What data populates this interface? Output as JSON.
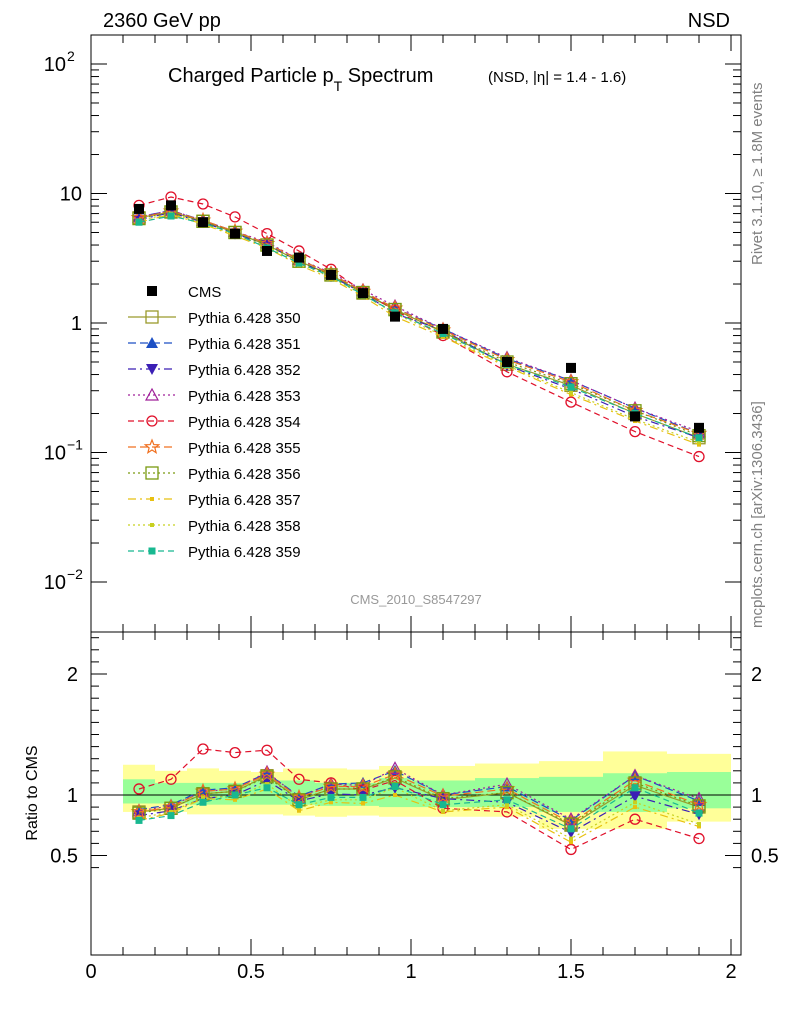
{
  "header": {
    "left": "2360 GeV pp",
    "right": "NSD"
  },
  "side_text": {
    "top": "Rivet 3.1.10, ≥ 1.8M events",
    "bottom": "mcplots.cern.ch [arXiv:1306.3436]"
  },
  "chart_data": [
    {
      "type": "line",
      "panel": "main",
      "title": "Charged Particle p",
      "title_sub": "T",
      "title_rest": " Spectrum",
      "title_note": "(NSD, |η| = 1.4 - 1.6)",
      "analysis_id": "CMS_2010_S8547297",
      "yscale": "log",
      "xlim": [
        0,
        2
      ],
      "ylim": [
        0.004,
        160
      ],
      "ytick_labels": [
        "10",
        "1",
        "10"
      ],
      "ytick_exp": [
        "2",
        "",
        "",
        "−1",
        "−2"
      ],
      "ytick_values": [
        100,
        10,
        1,
        0.1,
        0.01
      ],
      "x": [
        0.15,
        0.25,
        0.35,
        0.45,
        0.55,
        0.65,
        0.75,
        0.85,
        0.95,
        1.1,
        1.3,
        1.5,
        1.7,
        1.9
      ],
      "data": {
        "name": "CMS",
        "color": "#000000",
        "values": [
          7.6,
          8.1,
          6.0,
          4.9,
          3.6,
          3.2,
          2.35,
          1.7,
          1.12,
          0.9,
          0.5,
          0.45,
          0.19,
          0.155
        ]
      },
      "series": [
        {
          "name": "Pythia 6.428 350",
          "color": "#9a9a2c",
          "marker": "open-square",
          "dash": "solid",
          "values": [
            6.5,
            7.2,
            6.1,
            5.0,
            4.0,
            3.0,
            2.35,
            1.7,
            1.27,
            0.85,
            0.48,
            0.33,
            0.2,
            0.13
          ]
        },
        {
          "name": "Pythia 6.428 351",
          "color": "#1c4fc4",
          "marker": "filled-triangle-up",
          "dash": "8,4",
          "values": [
            6.6,
            7.4,
            6.2,
            5.1,
            4.1,
            3.1,
            2.4,
            1.75,
            1.3,
            0.9,
            0.53,
            0.36,
            0.22,
            0.14
          ]
        },
        {
          "name": "Pythia 6.428 352",
          "color": "#3b1fb5",
          "marker": "filled-triangle-down",
          "dash": "8,4,2,4",
          "values": [
            6.3,
            7.1,
            6.0,
            4.9,
            4.0,
            3.0,
            2.3,
            1.7,
            1.18,
            0.88,
            0.47,
            0.31,
            0.19,
            0.13
          ]
        },
        {
          "name": "Pythia 6.428 353",
          "color": "#a0209a",
          "marker": "open-triangle-up",
          "dash": "2,3",
          "values": [
            6.6,
            7.4,
            6.2,
            5.1,
            4.2,
            3.1,
            2.45,
            1.8,
            1.35,
            0.9,
            0.54,
            0.36,
            0.22,
            0.145
          ]
        },
        {
          "name": "Pythia 6.428 354",
          "color": "#e0102a",
          "marker": "open-circle",
          "dash": "6,4",
          "values": [
            8.1,
            9.4,
            8.3,
            6.6,
            4.9,
            3.6,
            2.6,
            1.75,
            1.25,
            0.8,
            0.42,
            0.245,
            0.145,
            0.093
          ]
        },
        {
          "name": "Pythia 6.428 355",
          "color": "#f07020",
          "marker": "open-star",
          "dash": "8,4",
          "values": [
            6.5,
            7.3,
            6.2,
            5.1,
            4.1,
            3.1,
            2.4,
            1.75,
            1.3,
            0.88,
            0.52,
            0.35,
            0.21,
            0.14
          ]
        },
        {
          "name": "Pythia 6.428 356",
          "color": "#7a9a10",
          "marker": "open-square",
          "dash": "2,3",
          "values": [
            6.4,
            7.2,
            6.1,
            5.0,
            4.0,
            3.0,
            2.35,
            1.72,
            1.27,
            0.86,
            0.5,
            0.34,
            0.21,
            0.135
          ]
        },
        {
          "name": "Pythia 6.428 357",
          "color": "#e8c010",
          "marker": "small-dot",
          "dash": "8,4,2,4",
          "values": [
            6.0,
            6.9,
            5.8,
            4.7,
            3.8,
            2.8,
            2.2,
            1.6,
            1.12,
            0.78,
            0.46,
            0.28,
            0.175,
            0.115
          ]
        },
        {
          "name": "Pythia 6.428 358",
          "color": "#c8d020",
          "marker": "small-dot",
          "dash": "2,3",
          "values": [
            6.2,
            7.0,
            5.9,
            4.8,
            3.9,
            2.9,
            2.25,
            1.65,
            1.18,
            0.8,
            0.47,
            0.29,
            0.18,
            0.12
          ]
        },
        {
          "name": "Pythia 6.428 359",
          "color": "#18b890",
          "marker": "filled-square",
          "dash": "6,4",
          "values": [
            6.0,
            6.7,
            5.9,
            4.9,
            3.8,
            2.9,
            2.3,
            1.65,
            1.2,
            0.83,
            0.48,
            0.32,
            0.2,
            0.13
          ]
        }
      ]
    },
    {
      "type": "line",
      "panel": "ratio",
      "ylabel": "Ratio to CMS",
      "xlim": [
        0,
        2
      ],
      "ylim": [
        0.35,
        2.5
      ],
      "ytick_labels": [
        "2",
        "1",
        "0.5"
      ],
      "ytick_values": [
        2,
        1,
        0.5
      ],
      "xtick_labels": [
        "0",
        "0.5",
        "1",
        "1.5",
        "2"
      ],
      "xtick_values": [
        0,
        0.5,
        1,
        1.5,
        2
      ],
      "band_edges": [
        0.1,
        0.2,
        0.3,
        0.4,
        0.5,
        0.6,
        0.7,
        0.8,
        0.9,
        1.0,
        1.2,
        1.4,
        1.6,
        1.8,
        2.0
      ],
      "band_outer": [
        [
          0.86,
          1.25
        ],
        [
          0.86,
          1.2
        ],
        [
          0.84,
          1.22
        ],
        [
          0.84,
          1.2
        ],
        [
          0.84,
          1.19
        ],
        [
          0.83,
          1.22
        ],
        [
          0.82,
          1.22
        ],
        [
          0.83,
          1.21
        ],
        [
          0.82,
          1.24
        ],
        [
          0.82,
          1.24
        ],
        [
          0.82,
          1.26
        ],
        [
          0.72,
          1.28
        ],
        [
          0.72,
          1.36
        ],
        [
          0.78,
          1.34
        ]
      ],
      "band_inner": [
        [
          0.93,
          1.13
        ],
        [
          0.93,
          1.1
        ],
        [
          0.92,
          1.1
        ],
        [
          0.92,
          1.1
        ],
        [
          0.92,
          1.12
        ],
        [
          0.92,
          1.12
        ],
        [
          0.91,
          1.1
        ],
        [
          0.91,
          1.1
        ],
        [
          0.9,
          1.14
        ],
        [
          0.9,
          1.12
        ],
        [
          0.9,
          1.14
        ],
        [
          0.86,
          1.15
        ],
        [
          0.86,
          1.18
        ],
        [
          0.89,
          1.19
        ]
      ],
      "band_colors": {
        "outer": "#ffff99",
        "inner": "#99ff99"
      },
      "ratios": [
        [
          0.86,
          0.89,
          1.01,
          1.03,
          1.16,
          0.96,
          1.05,
          1.05,
          1.14,
          0.96,
          1.02,
          0.75,
          1.08,
          0.9
        ],
        [
          0.88,
          0.92,
          1.04,
          1.06,
          1.18,
          0.99,
          1.09,
          1.1,
          1.2,
          1.0,
          1.07,
          0.79,
          1.16,
          0.95
        ],
        [
          0.83,
          0.87,
          0.97,
          1.0,
          1.12,
          0.95,
          1.01,
          1.0,
          1.06,
          0.97,
          0.94,
          0.69,
          0.99,
          0.84
        ],
        [
          0.87,
          0.91,
          1.03,
          1.05,
          1.19,
          0.98,
          1.09,
          1.08,
          1.22,
          1.0,
          1.09,
          0.8,
          1.16,
          0.97
        ],
        [
          1.05,
          1.13,
          1.38,
          1.35,
          1.37,
          1.13,
          1.1,
          1.04,
          1.12,
          0.89,
          0.86,
          0.55,
          0.8,
          0.64
        ],
        [
          0.86,
          0.9,
          1.03,
          1.05,
          1.17,
          0.98,
          1.07,
          1.07,
          1.17,
          0.99,
          1.05,
          0.77,
          1.12,
          0.92
        ],
        [
          0.85,
          0.89,
          1.01,
          1.03,
          1.15,
          0.96,
          1.05,
          1.05,
          1.15,
          0.97,
          1.02,
          0.76,
          1.1,
          0.91
        ],
        [
          0.79,
          0.85,
          0.97,
          0.96,
          1.05,
          0.87,
          0.94,
          0.93,
          1.0,
          0.86,
          0.9,
          0.61,
          0.9,
          0.74
        ],
        [
          0.81,
          0.86,
          0.98,
          0.99,
          1.09,
          0.9,
          0.96,
          0.96,
          1.06,
          0.87,
          0.92,
          0.64,
          0.94,
          0.76
        ],
        [
          0.79,
          0.83,
          0.94,
          1.0,
          1.06,
          0.92,
          0.98,
          0.98,
          1.07,
          0.92,
          0.96,
          0.72,
          1.06,
          0.85
        ]
      ]
    }
  ]
}
